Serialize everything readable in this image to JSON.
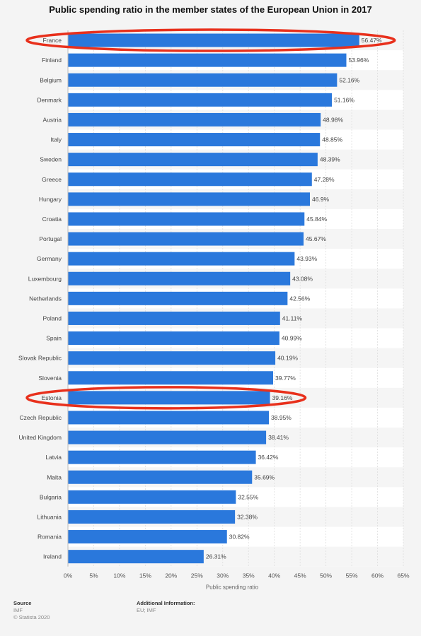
{
  "title": "Public spending ratio in the member states of the European Union in 2017",
  "chart_data": {
    "type": "bar",
    "orientation": "horizontal",
    "categories": [
      "France",
      "Finland",
      "Belgium",
      "Denmark",
      "Austria",
      "Italy",
      "Sweden",
      "Greece",
      "Hungary",
      "Croatia",
      "Portugal",
      "Germany",
      "Luxembourg",
      "Netherlands",
      "Poland",
      "Spain",
      "Slovak Republic",
      "Slovenia",
      "Estonia",
      "Czech Republic",
      "United Kingdom",
      "Latvia",
      "Malta",
      "Bulgaria",
      "Lithuania",
      "Romania",
      "Ireland"
    ],
    "values": [
      56.47,
      53.96,
      52.16,
      51.16,
      48.98,
      48.85,
      48.39,
      47.28,
      46.9,
      45.84,
      45.67,
      43.93,
      43.08,
      42.56,
      41.11,
      40.99,
      40.19,
      39.77,
      39.16,
      38.95,
      38.41,
      36.42,
      35.69,
      32.55,
      32.38,
      30.82,
      26.31
    ],
    "value_labels": [
      "56.47%",
      "53.96%",
      "52.16%",
      "51.16%",
      "48.98%",
      "48.85%",
      "48.39%",
      "47.28%",
      "46.9%",
      "45.84%",
      "45.67%",
      "43.93%",
      "43.08%",
      "42.56%",
      "41.11%",
      "40.99%",
      "40.19%",
      "39.77%",
      "39.16%",
      "38.95%",
      "38.41%",
      "36.42%",
      "35.69%",
      "32.55%",
      "32.38%",
      "30.82%",
      "26.31%"
    ],
    "xlabel": "Public spending ratio",
    "xlim": [
      0,
      65
    ],
    "x_ticks": [
      "0%",
      "5%",
      "10%",
      "15%",
      "20%",
      "25%",
      "30%",
      "35%",
      "40%",
      "45%",
      "50%",
      "55%",
      "60%",
      "65%"
    ],
    "highlighted": [
      "France",
      "Estonia"
    ],
    "grid": true,
    "bar_color": "#2a78dc",
    "highlight_color": "#e8301c"
  },
  "footer": {
    "source_heading": "Source",
    "source_lines": [
      "IMF",
      "© Statista 2020"
    ],
    "info_heading": "Additional Information:",
    "info_lines": [
      "EU; IMF"
    ]
  }
}
